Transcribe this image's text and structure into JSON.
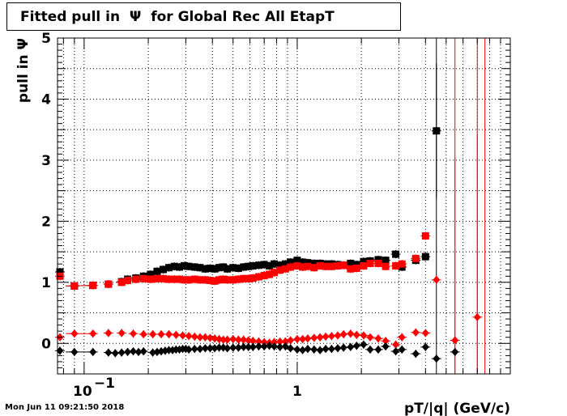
{
  "title": "Fitted pull in  Ψ  for Global Rec All EtapT",
  "timestamp": "Mon Jun 11 09:21:50 2018",
  "chart_data": {
    "type": "scatter",
    "title": "Fitted pull in  Ψ  for Global Rec All EtapT",
    "xlabel": "pT/|q| (GeV/c)",
    "ylabel": "pull in  Ψ",
    "xscale": "log",
    "xlim": [
      0.075,
      10
    ],
    "ylim": [
      -0.5,
      5
    ],
    "grid": true,
    "x_tick_labels": [
      "10^-1",
      "1"
    ],
    "y_tick_labels": [
      "0",
      "1",
      "2",
      "3",
      "4",
      "5"
    ],
    "series": [
      {
        "marker": "square",
        "color": "#000000",
        "points": [
          [
            0.077,
            1.17
          ],
          [
            0.09,
            0.94
          ],
          [
            0.11,
            0.95
          ],
          [
            0.13,
            0.97
          ],
          [
            0.15,
            1.01
          ],
          [
            0.16,
            1.05
          ],
          [
            0.175,
            1.07
          ],
          [
            0.19,
            1.1
          ],
          [
            0.205,
            1.13
          ],
          [
            0.22,
            1.18
          ],
          [
            0.235,
            1.21
          ],
          [
            0.25,
            1.24
          ],
          [
            0.265,
            1.26
          ],
          [
            0.28,
            1.25
          ],
          [
            0.295,
            1.27
          ],
          [
            0.31,
            1.26
          ],
          [
            0.33,
            1.25
          ],
          [
            0.35,
            1.24
          ],
          [
            0.37,
            1.22
          ],
          [
            0.39,
            1.23
          ],
          [
            0.41,
            1.22
          ],
          [
            0.43,
            1.24
          ],
          [
            0.45,
            1.25
          ],
          [
            0.47,
            1.22
          ],
          [
            0.5,
            1.24
          ],
          [
            0.53,
            1.23
          ],
          [
            0.56,
            1.25
          ],
          [
            0.59,
            1.26
          ],
          [
            0.62,
            1.27
          ],
          [
            0.66,
            1.28
          ],
          [
            0.7,
            1.29
          ],
          [
            0.74,
            1.27
          ],
          [
            0.78,
            1.3
          ],
          [
            0.83,
            1.28
          ],
          [
            0.88,
            1.3
          ],
          [
            0.93,
            1.33
          ],
          [
            1.0,
            1.36
          ],
          [
            1.06,
            1.33
          ],
          [
            1.12,
            1.32
          ],
          [
            1.2,
            1.31
          ],
          [
            1.28,
            1.31
          ],
          [
            1.36,
            1.3
          ],
          [
            1.45,
            1.3
          ],
          [
            1.55,
            1.29
          ],
          [
            1.65,
            1.28
          ],
          [
            1.78,
            1.31
          ],
          [
            1.9,
            1.29
          ],
          [
            2.05,
            1.34
          ],
          [
            2.2,
            1.35
          ],
          [
            2.4,
            1.37
          ],
          [
            2.6,
            1.36
          ],
          [
            2.9,
            1.46
          ],
          [
            3.1,
            1.25
          ],
          [
            3.6,
            1.36
          ],
          [
            4.0,
            1.42
          ],
          [
            4.5,
            3.48
          ]
        ],
        "errors": [
          [
            4.5,
            1.1
          ]
        ]
      },
      {
        "marker": "square",
        "color": "#ff0000",
        "points": [
          [
            0.077,
            1.1
          ],
          [
            0.09,
            0.94
          ],
          [
            0.11,
            0.95
          ],
          [
            0.13,
            0.97
          ],
          [
            0.15,
            1.0
          ],
          [
            0.16,
            1.03
          ],
          [
            0.175,
            1.05
          ],
          [
            0.19,
            1.06
          ],
          [
            0.205,
            1.05
          ],
          [
            0.22,
            1.06
          ],
          [
            0.235,
            1.06
          ],
          [
            0.25,
            1.05
          ],
          [
            0.265,
            1.05
          ],
          [
            0.28,
            1.05
          ],
          [
            0.295,
            1.04
          ],
          [
            0.31,
            1.04
          ],
          [
            0.33,
            1.05
          ],
          [
            0.35,
            1.04
          ],
          [
            0.37,
            1.04
          ],
          [
            0.39,
            1.03
          ],
          [
            0.41,
            1.02
          ],
          [
            0.43,
            1.04
          ],
          [
            0.45,
            1.05
          ],
          [
            0.47,
            1.04
          ],
          [
            0.5,
            1.04
          ],
          [
            0.53,
            1.05
          ],
          [
            0.56,
            1.06
          ],
          [
            0.59,
            1.06
          ],
          [
            0.62,
            1.07
          ],
          [
            0.66,
            1.09
          ],
          [
            0.7,
            1.11
          ],
          [
            0.74,
            1.13
          ],
          [
            0.78,
            1.16
          ],
          [
            0.83,
            1.2
          ],
          [
            0.88,
            1.22
          ],
          [
            0.93,
            1.25
          ],
          [
            1.0,
            1.27
          ],
          [
            1.06,
            1.25
          ],
          [
            1.12,
            1.26
          ],
          [
            1.2,
            1.24
          ],
          [
            1.28,
            1.27
          ],
          [
            1.36,
            1.26
          ],
          [
            1.45,
            1.26
          ],
          [
            1.55,
            1.27
          ],
          [
            1.65,
            1.28
          ],
          [
            1.78,
            1.22
          ],
          [
            1.9,
            1.23
          ],
          [
            2.05,
            1.27
          ],
          [
            2.2,
            1.31
          ],
          [
            2.4,
            1.31
          ],
          [
            2.6,
            1.26
          ],
          [
            2.9,
            1.27
          ],
          [
            3.1,
            1.3
          ],
          [
            3.6,
            1.39
          ],
          [
            4.0,
            1.76
          ]
        ],
        "errors": []
      },
      {
        "marker": "diamond",
        "color": "#ff0000",
        "points": [
          [
            0.077,
            0.1
          ],
          [
            0.09,
            0.16
          ],
          [
            0.11,
            0.16
          ],
          [
            0.13,
            0.17
          ],
          [
            0.15,
            0.17
          ],
          [
            0.17,
            0.16
          ],
          [
            0.19,
            0.15
          ],
          [
            0.21,
            0.15
          ],
          [
            0.23,
            0.15
          ],
          [
            0.25,
            0.15
          ],
          [
            0.27,
            0.14
          ],
          [
            0.29,
            0.13
          ],
          [
            0.31,
            0.12
          ],
          [
            0.33,
            0.11
          ],
          [
            0.35,
            0.1
          ],
          [
            0.37,
            0.1
          ],
          [
            0.39,
            0.09
          ],
          [
            0.41,
            0.08
          ],
          [
            0.43,
            0.07
          ],
          [
            0.45,
            0.06
          ],
          [
            0.47,
            0.06
          ],
          [
            0.5,
            0.07
          ],
          [
            0.53,
            0.06
          ],
          [
            0.56,
            0.06
          ],
          [
            0.59,
            0.05
          ],
          [
            0.62,
            0.04
          ],
          [
            0.66,
            0.03
          ],
          [
            0.7,
            0.02
          ],
          [
            0.74,
            0.01
          ],
          [
            0.78,
            0.02
          ],
          [
            0.83,
            0.03
          ],
          [
            0.88,
            0.03
          ],
          [
            0.93,
            0.05
          ],
          [
            1.0,
            0.07
          ],
          [
            1.06,
            0.07
          ],
          [
            1.12,
            0.08
          ],
          [
            1.2,
            0.09
          ],
          [
            1.28,
            0.1
          ],
          [
            1.36,
            0.11
          ],
          [
            1.45,
            0.12
          ],
          [
            1.55,
            0.13
          ],
          [
            1.65,
            0.15
          ],
          [
            1.78,
            0.16
          ],
          [
            1.9,
            0.14
          ],
          [
            2.05,
            0.13
          ],
          [
            2.2,
            0.1
          ],
          [
            2.4,
            0.08
          ],
          [
            2.6,
            0.04
          ],
          [
            2.9,
            -0.02
          ],
          [
            3.1,
            0.1
          ],
          [
            3.6,
            0.18
          ],
          [
            4.0,
            0.17
          ],
          [
            4.5,
            1.04
          ],
          [
            5.5,
            0.05
          ],
          [
            7.0,
            0.43
          ]
        ],
        "errors": [
          [
            5.5,
            3.0
          ],
          [
            7.0,
            3.0
          ]
        ]
      },
      {
        "marker": "diamond",
        "color": "#000000",
        "points": [
          [
            0.077,
            -0.12
          ],
          [
            0.09,
            -0.14
          ],
          [
            0.11,
            -0.14
          ],
          [
            0.13,
            -0.15
          ],
          [
            0.14,
            -0.16
          ],
          [
            0.15,
            -0.15
          ],
          [
            0.16,
            -0.14
          ],
          [
            0.17,
            -0.13
          ],
          [
            0.18,
            -0.14
          ],
          [
            0.19,
            -0.13
          ],
          [
            0.21,
            -0.15
          ],
          [
            0.22,
            -0.14
          ],
          [
            0.23,
            -0.13
          ],
          [
            0.24,
            -0.12
          ],
          [
            0.25,
            -0.11
          ],
          [
            0.26,
            -0.11
          ],
          [
            0.27,
            -0.1
          ],
          [
            0.28,
            -0.1
          ],
          [
            0.29,
            -0.09
          ],
          [
            0.3,
            -0.09
          ],
          [
            0.31,
            -0.1
          ],
          [
            0.33,
            -0.09
          ],
          [
            0.35,
            -0.09
          ],
          [
            0.37,
            -0.08
          ],
          [
            0.39,
            -0.08
          ],
          [
            0.41,
            -0.08
          ],
          [
            0.43,
            -0.07
          ],
          [
            0.45,
            -0.07
          ],
          [
            0.47,
            -0.08
          ],
          [
            0.5,
            -0.07
          ],
          [
            0.53,
            -0.07
          ],
          [
            0.56,
            -0.06
          ],
          [
            0.59,
            -0.06
          ],
          [
            0.62,
            -0.06
          ],
          [
            0.66,
            -0.05
          ],
          [
            0.7,
            -0.05
          ],
          [
            0.74,
            -0.04
          ],
          [
            0.78,
            -0.05
          ],
          [
            0.83,
            -0.06
          ],
          [
            0.88,
            -0.05
          ],
          [
            0.93,
            -0.08
          ],
          [
            1.0,
            -0.1
          ],
          [
            1.06,
            -0.11
          ],
          [
            1.12,
            -0.09
          ],
          [
            1.2,
            -0.1
          ],
          [
            1.28,
            -0.11
          ],
          [
            1.36,
            -0.09
          ],
          [
            1.45,
            -0.09
          ],
          [
            1.55,
            -0.08
          ],
          [
            1.65,
            -0.07
          ],
          [
            1.78,
            -0.06
          ],
          [
            1.9,
            -0.04
          ],
          [
            2.05,
            -0.02
          ],
          [
            2.2,
            -0.1
          ],
          [
            2.4,
            -0.1
          ],
          [
            2.6,
            -0.05
          ],
          [
            2.9,
            -0.13
          ],
          [
            3.1,
            -0.1
          ],
          [
            3.6,
            -0.17
          ],
          [
            4.0,
            -0.06
          ],
          [
            4.5,
            -0.25
          ],
          [
            5.5,
            -0.14
          ]
        ],
        "errors": []
      }
    ],
    "error_lines": [
      {
        "x": 4.5,
        "color": "#000000"
      },
      {
        "x": 5.5,
        "color": "#ff0000"
      },
      {
        "x": 7.0,
        "color": "#ff0000"
      },
      {
        "x": 7.6,
        "color": "#ff0000"
      }
    ]
  }
}
